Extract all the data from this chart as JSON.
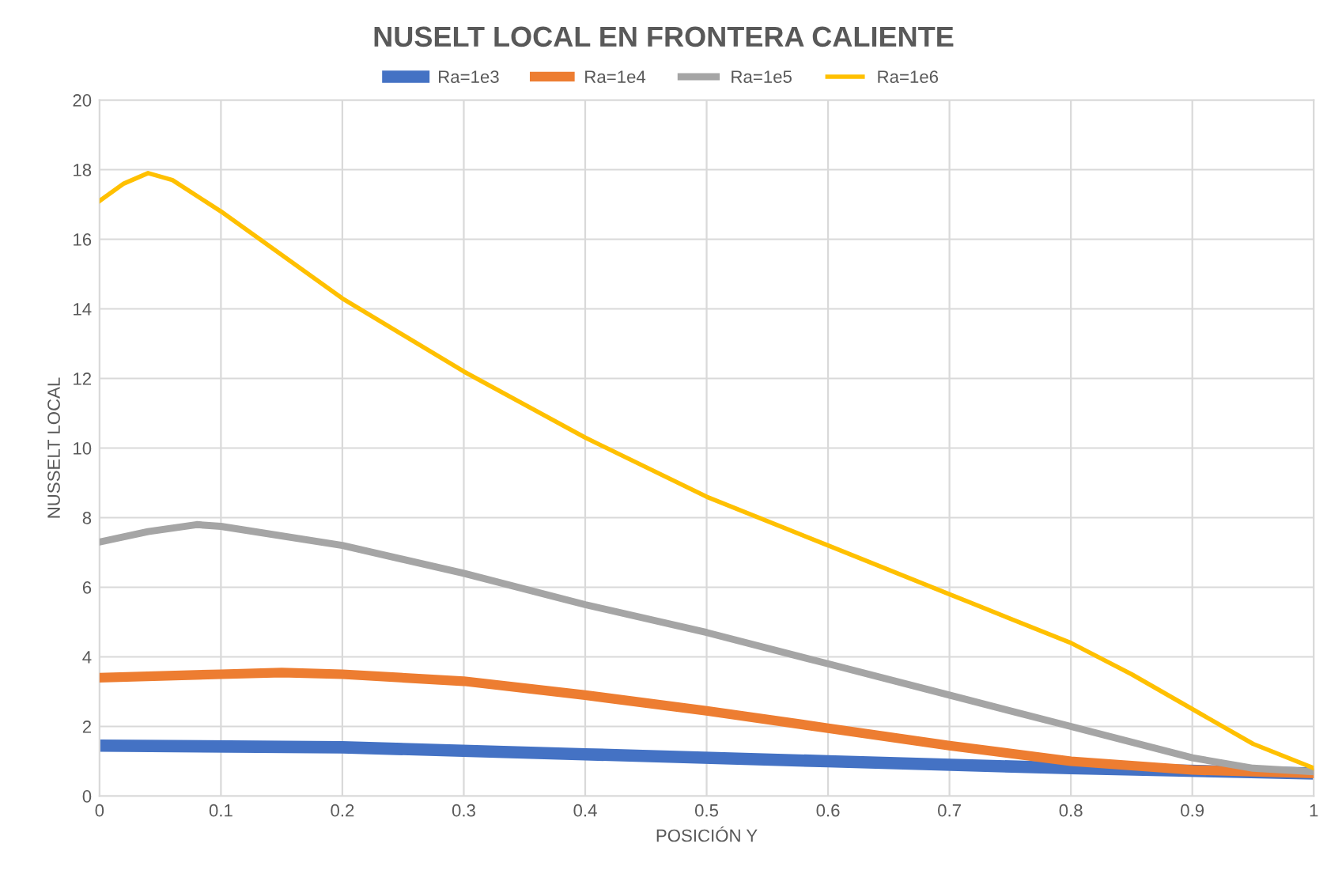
{
  "chart_data": {
    "type": "line",
    "title": "NUSELT LOCAL EN FRONTERA CALIENTE",
    "xlabel": "POSICIÓN Y",
    "ylabel": "NUSSELT LOCAL",
    "xlim": [
      0,
      1
    ],
    "xticks": [
      0,
      0.1,
      0.2,
      0.3,
      0.4,
      0.5,
      0.6,
      0.7,
      0.8,
      0.9,
      1
    ],
    "ylim": [
      0,
      20
    ],
    "yticks": [
      0,
      2,
      4,
      6,
      8,
      10,
      12,
      14,
      16,
      18,
      20
    ],
    "grid": true,
    "legend": "top",
    "marker": "none",
    "line_style": "solid",
    "series": [
      {
        "name": "Ra=1e3",
        "color": "#4472c4",
        "x": [
          0,
          0.2,
          0.4,
          0.6,
          0.8,
          1
        ],
        "values": [
          1.45,
          1.4,
          1.2,
          1.0,
          0.8,
          0.65
        ]
      },
      {
        "name": "Ra=1e4",
        "color": "#ed7d31",
        "x": [
          0,
          0.1,
          0.15,
          0.2,
          0.3,
          0.4,
          0.5,
          0.6,
          0.7,
          0.8,
          0.9,
          1
        ],
        "values": [
          3.4,
          3.5,
          3.55,
          3.5,
          3.3,
          2.9,
          2.45,
          1.95,
          1.45,
          1.0,
          0.75,
          0.65
        ]
      },
      {
        "name": "Ra=1e5",
        "color": "#a5a5a5",
        "x": [
          0,
          0.04,
          0.08,
          0.1,
          0.2,
          0.3,
          0.4,
          0.5,
          0.6,
          0.7,
          0.8,
          0.9,
          0.95,
          1
        ],
        "values": [
          7.3,
          7.6,
          7.8,
          7.75,
          7.2,
          6.4,
          5.5,
          4.7,
          3.8,
          2.9,
          2.0,
          1.1,
          0.8,
          0.7
        ]
      },
      {
        "name": "Ra=1e6",
        "color": "#ffc000",
        "x": [
          0,
          0.02,
          0.04,
          0.06,
          0.1,
          0.2,
          0.3,
          0.4,
          0.5,
          0.6,
          0.7,
          0.8,
          0.85,
          0.9,
          0.95,
          1
        ],
        "values": [
          17.1,
          17.6,
          17.9,
          17.7,
          16.8,
          14.3,
          12.2,
          10.3,
          8.6,
          7.2,
          5.8,
          4.4,
          3.5,
          2.5,
          1.5,
          0.8
        ]
      }
    ]
  }
}
